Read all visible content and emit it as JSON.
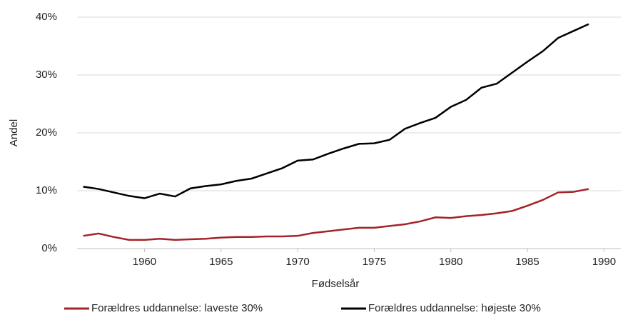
{
  "chart_data": {
    "type": "line",
    "x_label": "Fødselsår",
    "y_label": "Andel",
    "x": [
      1956,
      1957,
      1958,
      1959,
      1960,
      1961,
      1962,
      1963,
      1964,
      1965,
      1966,
      1967,
      1968,
      1969,
      1970,
      1971,
      1972,
      1973,
      1974,
      1975,
      1976,
      1977,
      1978,
      1979,
      1980,
      1981,
      1982,
      1983,
      1984,
      1985,
      1986,
      1987,
      1988,
      1989
    ],
    "series": [
      {
        "name": "Forældres uddannelse: laveste 30%",
        "color": "#a3242b",
        "values": [
          2.2,
          2.6,
          2.0,
          1.5,
          1.5,
          1.7,
          1.5,
          1.6,
          1.7,
          1.9,
          2.0,
          2.0,
          2.1,
          2.1,
          2.2,
          2.7,
          3.0,
          3.3,
          3.6,
          3.6,
          3.9,
          4.2,
          4.7,
          5.4,
          5.3,
          5.6,
          5.8,
          6.1,
          6.5,
          7.4,
          8.4,
          9.7,
          9.8,
          10.3
        ]
      },
      {
        "name": "Forældres uddannelse: højeste 30%",
        "color": "#000000",
        "values": [
          10.7,
          10.3,
          9.7,
          9.1,
          8.7,
          9.5,
          9.0,
          10.4,
          10.8,
          11.1,
          11.7,
          12.1,
          13.0,
          13.9,
          15.2,
          15.4,
          16.4,
          17.3,
          18.1,
          18.2,
          18.8,
          20.7,
          21.7,
          22.6,
          24.5,
          25.7,
          27.8,
          28.5,
          30.4,
          32.3,
          34.1,
          36.4,
          37.6,
          38.8
        ]
      }
    ],
    "xlim": [
      1955.6,
      1991.1
    ],
    "xticks": [
      1960,
      1965,
      1970,
      1975,
      1980,
      1985,
      1990
    ],
    "ylim": [
      0,
      40
    ],
    "yticks": [
      {
        "value": 0,
        "label": "0%"
      },
      {
        "value": 10,
        "label": "10%"
      },
      {
        "value": 20,
        "label": "20%"
      },
      {
        "value": 30,
        "label": "30%"
      },
      {
        "value": 40,
        "label": "40%"
      }
    ],
    "grid": true,
    "legend": "bottom"
  }
}
